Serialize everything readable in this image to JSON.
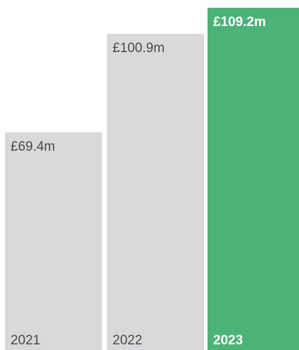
{
  "chart_data": {
    "type": "bar",
    "categories": [
      "2021",
      "2022",
      "2023"
    ],
    "values": [
      69.4,
      100.9,
      109.2
    ],
    "value_labels": [
      "£69.4m",
      "£100.9m",
      "£109.2m"
    ],
    "ylim": [
      0,
      109.2
    ],
    "grid": false,
    "highlight_index": 2,
    "colors": {
      "default_bar": "#d9d9dc",
      "default_text": "#4a4a4a",
      "highlight_bar": "#4bb377",
      "highlight_text": "#ffffff"
    }
  }
}
